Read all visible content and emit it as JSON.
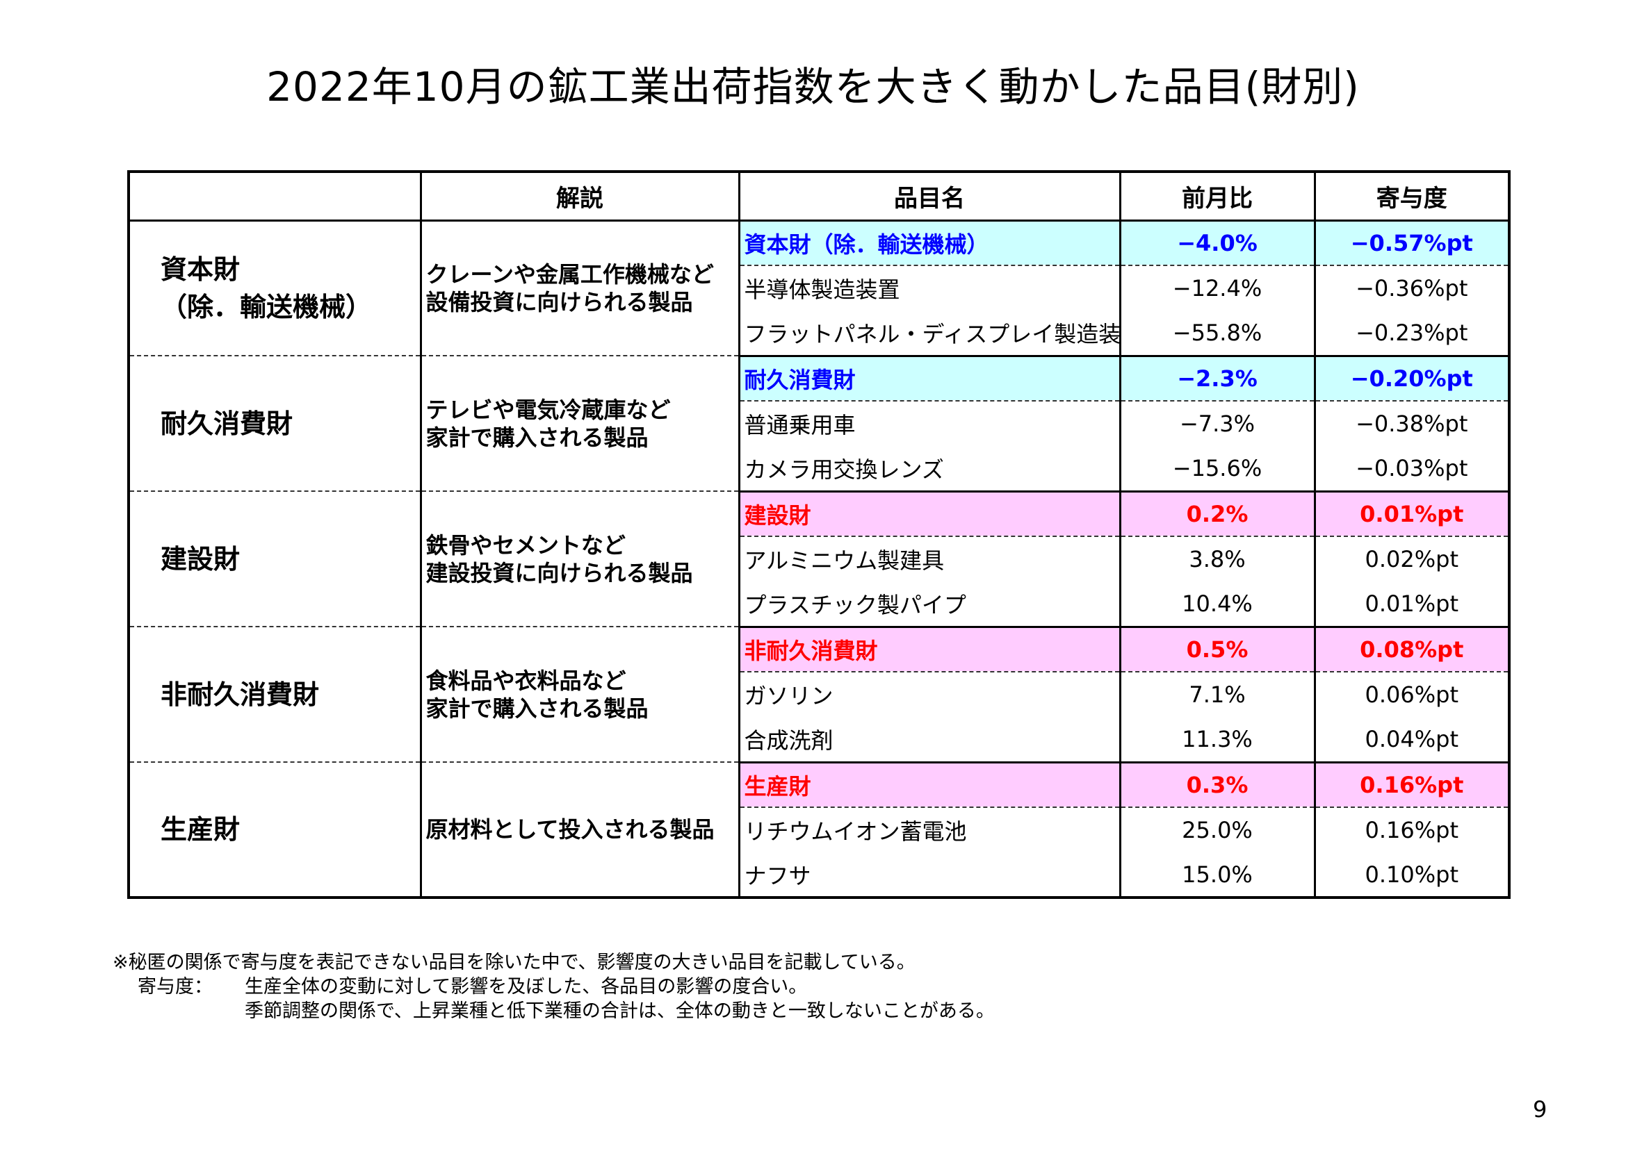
{
  "title": "2022年10月の鉱工業出荷指数を大きく動かした品目(財別)",
  "headers": {
    "category": "",
    "description": "解説",
    "item": "品目名",
    "mom": "前月比",
    "contribution": "寄与度"
  },
  "groups": [
    {
      "category_line1": "資本財",
      "category_line2": "（除．輸送機械）",
      "desc_line1": "クレーンや金属工作機械など",
      "desc_line2": "設備投資に向けられる製品",
      "highlight": "blue",
      "rows": [
        {
          "item": "資本財（除．輸送機械）",
          "mom": "−4.0%",
          "contribution": "−0.57%pt"
        },
        {
          "item": "半導体製造装置",
          "mom": "−12.4%",
          "contribution": "−0.36%pt"
        },
        {
          "item": "フラットパネル・ディスプレイ製造装置",
          "mom": "−55.8%",
          "contribution": "−0.23%pt"
        }
      ]
    },
    {
      "category_line1": "耐久消費財",
      "category_line2": "",
      "desc_line1": "テレビや電気冷蔵庫など",
      "desc_line2": "家計で購入される製品",
      "highlight": "blue",
      "rows": [
        {
          "item": "耐久消費財",
          "mom": "−2.3%",
          "contribution": "−0.20%pt"
        },
        {
          "item": "普通乗用車",
          "mom": "−7.3%",
          "contribution": "−0.38%pt"
        },
        {
          "item": "カメラ用交換レンズ",
          "mom": "−15.6%",
          "contribution": "−0.03%pt"
        }
      ]
    },
    {
      "category_line1": "建設財",
      "category_line2": "",
      "desc_line1": "鉄骨やセメントなど",
      "desc_line2": "建設投資に向けられる製品",
      "highlight": "pink",
      "rows": [
        {
          "item": "建設財",
          "mom": "0.2%",
          "contribution": "0.01%pt"
        },
        {
          "item": "アルミニウム製建具",
          "mom": "3.8%",
          "contribution": "0.02%pt"
        },
        {
          "item": "プラスチック製パイプ",
          "mom": "10.4%",
          "contribution": "0.01%pt"
        }
      ]
    },
    {
      "category_line1": "非耐久消費財",
      "category_line2": "",
      "desc_line1": "食料品や衣料品など",
      "desc_line2": "家計で購入される製品",
      "highlight": "pink",
      "rows": [
        {
          "item": "非耐久消費財",
          "mom": "0.5%",
          "contribution": "0.08%pt"
        },
        {
          "item": "ガソリン",
          "mom": "7.1%",
          "contribution": "0.06%pt"
        },
        {
          "item": "合成洗剤",
          "mom": "11.3%",
          "contribution": "0.04%pt"
        }
      ]
    },
    {
      "category_line1": "生産財",
      "category_line2": "",
      "desc_line1": "原材料として投入される製品",
      "desc_line2": "",
      "highlight": "pink",
      "rows": [
        {
          "item": "生産財",
          "mom": "0.3%",
          "contribution": "0.16%pt"
        },
        {
          "item": "リチウムイオン蓄電池",
          "mom": "25.0%",
          "contribution": "0.16%pt"
        },
        {
          "item": "ナフサ",
          "mom": "15.0%",
          "contribution": "0.10%pt"
        }
      ]
    }
  ],
  "notes": {
    "line1": "※秘匿の関係で寄与度を表記できない品目を除いた中で、影響度の大きい品目を記載している。",
    "line2_label": "寄与度：",
    "line2_text": "生産全体の変動に対して影響を及ぼした、各品目の影響の度合い。",
    "line3": "季節調整の関係で、上昇業種と低下業種の合計は、全体の動きと一致しないことがある。"
  },
  "page_number": "9"
}
